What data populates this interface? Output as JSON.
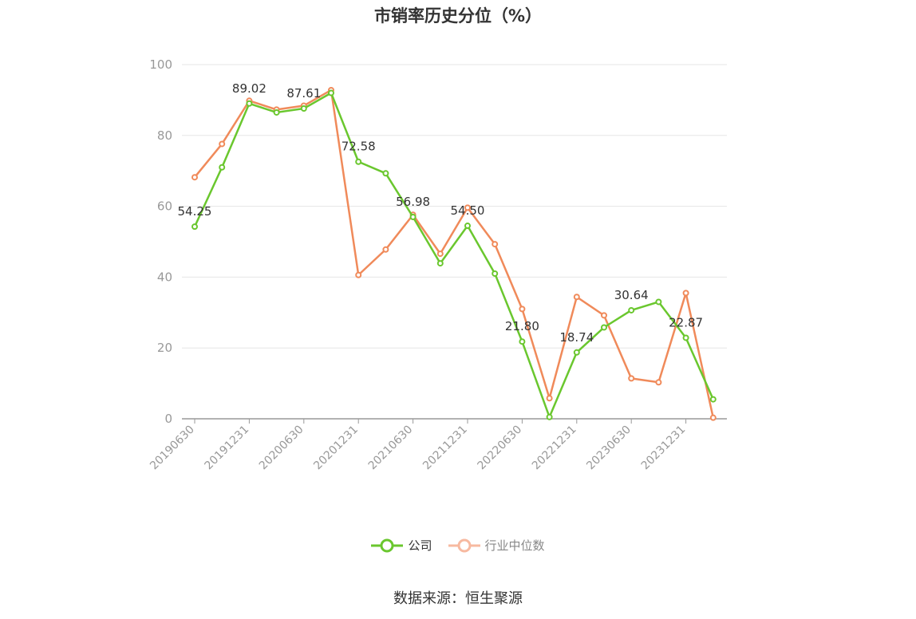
{
  "title": "市销率历史分位（%）",
  "source": "数据来源：恒生聚源",
  "colors": {
    "company": "#6ac72e",
    "industry": "#f08a5a",
    "grid": "#e6e6e6",
    "axis": "#999999",
    "label": "#999999"
  },
  "chart_data": {
    "type": "line",
    "title": "市销率历史分位（%）",
    "xlabel": "",
    "ylabel": "",
    "ylim": [
      0,
      100
    ],
    "yticks": [
      0,
      20,
      40,
      60,
      80,
      100
    ],
    "x": [
      "20190630",
      "20190930",
      "20191231",
      "20200331",
      "20200630",
      "20200930",
      "20201231",
      "20210331",
      "20210630",
      "20210930",
      "20211231",
      "20220331",
      "20220630",
      "20220930",
      "20221231",
      "20230331",
      "20230630",
      "20230930",
      "20231231",
      "20240331"
    ],
    "xtick_labels": [
      "20190630",
      "20191231",
      "20200630",
      "20201231",
      "20210630",
      "20211231",
      "20220630",
      "20221231",
      "20230630",
      "20231231"
    ],
    "legend_position": "bottom",
    "grid": true,
    "series": [
      {
        "name": "公司",
        "values": [
          54.25,
          71.0,
          89.02,
          86.5,
          87.61,
          92.0,
          72.58,
          69.3,
          56.98,
          43.9,
          54.5,
          41.0,
          21.8,
          0.5,
          18.74,
          25.8,
          30.64,
          33.0,
          22.87,
          5.5
        ],
        "labels": [
          "54.25",
          "",
          "89.02",
          "",
          "87.61",
          "",
          "72.58",
          "",
          "56.98",
          "",
          "54.50",
          "",
          "21.80",
          "",
          "18.74",
          "",
          "30.64",
          "",
          "22.87",
          ""
        ]
      },
      {
        "name": "行业中位数",
        "values": [
          68.2,
          77.6,
          89.8,
          87.3,
          88.4,
          92.8,
          40.6,
          47.8,
          57.6,
          46.6,
          59.6,
          49.3,
          31.0,
          5.8,
          34.4,
          29.2,
          11.4,
          10.3,
          35.5,
          0.3
        ]
      }
    ]
  }
}
